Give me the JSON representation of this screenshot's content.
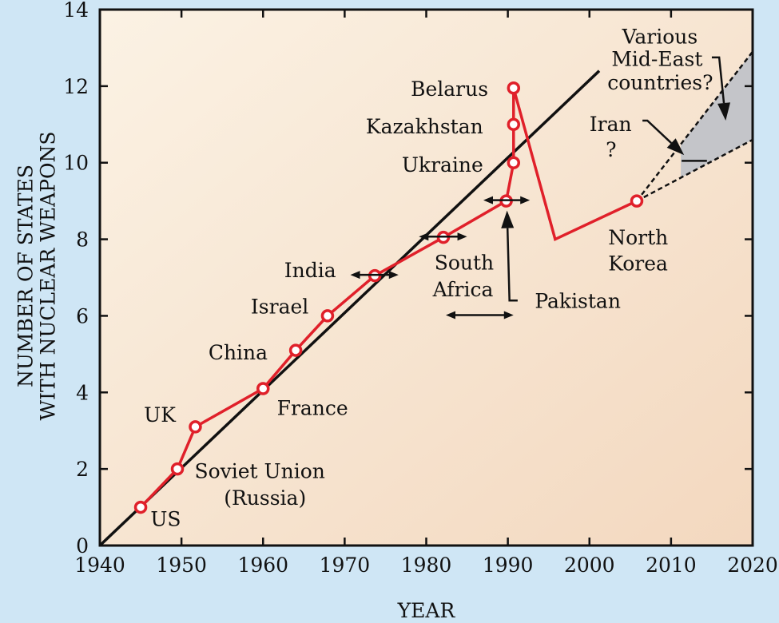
{
  "chart_data": {
    "type": "line",
    "title": "",
    "xlabel": "YEAR",
    "ylabel_lines": [
      "NUMBER OF STATES",
      "WITH NUCLEAR WEAPONS"
    ],
    "xlim": [
      1940,
      2020
    ],
    "ylim": [
      0,
      14
    ],
    "x_ticks": [
      1940,
      1950,
      1960,
      1970,
      1980,
      1990,
      2000,
      2010,
      2020
    ],
    "y_ticks": [
      0,
      2,
      4,
      6,
      8,
      10,
      12,
      14
    ],
    "grid": false,
    "colors": {
      "series": "#e0202a",
      "marker_fill": "#ffffff",
      "trend": "#111111",
      "projection_fill": "#c4c5c9",
      "background_light": "#fbf2e4",
      "background_warm": "#f3d8bf",
      "page": "#cfe6f5"
    },
    "series": [
      {
        "points": [
          {
            "x": 1945,
            "y": 1,
            "marker": true
          },
          {
            "x": 1949.5,
            "y": 2,
            "marker": true
          },
          {
            "x": 1951.7,
            "y": 3.1,
            "marker": true
          },
          {
            "x": 1960,
            "y": 4.1,
            "marker": true
          },
          {
            "x": 1964,
            "y": 5.1,
            "marker": true
          },
          {
            "x": 1967.9,
            "y": 6,
            "marker": true
          },
          {
            "x": 1973.7,
            "y": 7.05,
            "marker": true
          },
          {
            "x": 1982.1,
            "y": 8.05,
            "marker": true
          },
          {
            "x": 1989.8,
            "y": 9,
            "marker": true
          },
          {
            "x": 1990.7,
            "y": 10,
            "marker": true
          },
          {
            "x": 1990.7,
            "y": 11,
            "marker": true
          },
          {
            "x": 1990.7,
            "y": 11.95,
            "marker": true
          },
          {
            "x": 1995.8,
            "y": 8,
            "marker": false
          },
          {
            "x": 2005.8,
            "y": 9,
            "marker": true
          }
        ]
      }
    ],
    "trend_line": {
      "x": [
        1940,
        2001.2
      ],
      "y": [
        0,
        12.4
      ]
    },
    "projection": {
      "from": {
        "x": 2005.8,
        "y": 9
      },
      "upper": {
        "x": 2020,
        "y": 12.9
      },
      "lower": {
        "x": 2020,
        "y": 10.6
      }
    },
    "annotations": [
      {
        "text": "US",
        "x": 1946.2,
        "y": 0.7
      },
      {
        "text": "Soviet Union",
        "x": 1951.6,
        "y": 1.95
      },
      {
        "text": "(Russia)",
        "x": 1955.2,
        "y": 1.25
      },
      {
        "text": "UK",
        "x": 1945.4,
        "y": 3.42
      },
      {
        "text": "France",
        "x": 1961.7,
        "y": 3.6
      },
      {
        "text": "China",
        "x": 1953.3,
        "y": 5.05
      },
      {
        "text": "Israel",
        "x": 1958.5,
        "y": 6.25
      },
      {
        "text": "India",
        "x": 1962.6,
        "y": 7.2
      },
      {
        "text": "South",
        "x": 1981,
        "y": 7.4
      },
      {
        "text": "Africa",
        "x": 1980.8,
        "y": 6.7
      },
      {
        "text": "Pakistan",
        "x": 1993.3,
        "y": 6.4
      },
      {
        "text": "Ukraine",
        "x": 1977,
        "y": 9.95
      },
      {
        "text": "Kazakhstan",
        "x": 1972.6,
        "y": 10.95
      },
      {
        "text": "Belarus",
        "x": 1978.1,
        "y": 11.93
      },
      {
        "text": "North",
        "x": 2002.3,
        "y": 8.05
      },
      {
        "text": "Korea",
        "x": 2002.3,
        "y": 7.38
      },
      {
        "text": "Iran",
        "x": 2000,
        "y": 11.02
      },
      {
        "text": "?",
        "x": 2002,
        "y": 10.35
      },
      {
        "text": "Various",
        "x": 2004,
        "y": 13.3
      },
      {
        "text": "Mid-East",
        "x": 2002.7,
        "y": 12.72
      },
      {
        "text": "countries?",
        "x": 2002.2,
        "y": 12.1
      }
    ],
    "arrows": [
      {
        "kind": "double",
        "x1": 1982.4,
        "x2": 1990.7,
        "y": 6.02
      },
      {
        "kind": "double",
        "x1": 1970.7,
        "x2": 1976.6,
        "y": 7.07
      },
      {
        "kind": "double",
        "x1": 1979.1,
        "x2": 1985,
        "y": 8.07
      },
      {
        "kind": "double",
        "x1": 1987,
        "x2": 1992.7,
        "y": 9.02
      },
      {
        "kind": "pointer",
        "points": [
          [
            1991.2,
            6.4
          ],
          [
            1990.2,
            6.4
          ],
          [
            1989.9,
            8.75
          ]
        ]
      },
      {
        "kind": "pointer",
        "points": [
          [
            2006.5,
            11.1
          ],
          [
            2007.1,
            11.1
          ],
          [
            2011.6,
            10.2
          ]
        ]
      },
      {
        "kind": "pointer",
        "points": [
          [
            2015,
            12.75
          ],
          [
            2015.9,
            12.75
          ],
          [
            2016.7,
            11.1
          ]
        ]
      },
      {
        "kind": "plain",
        "points": [
          [
            2011.3,
            10.05
          ],
          [
            2014.4,
            10.05
          ]
        ]
      }
    ]
  }
}
